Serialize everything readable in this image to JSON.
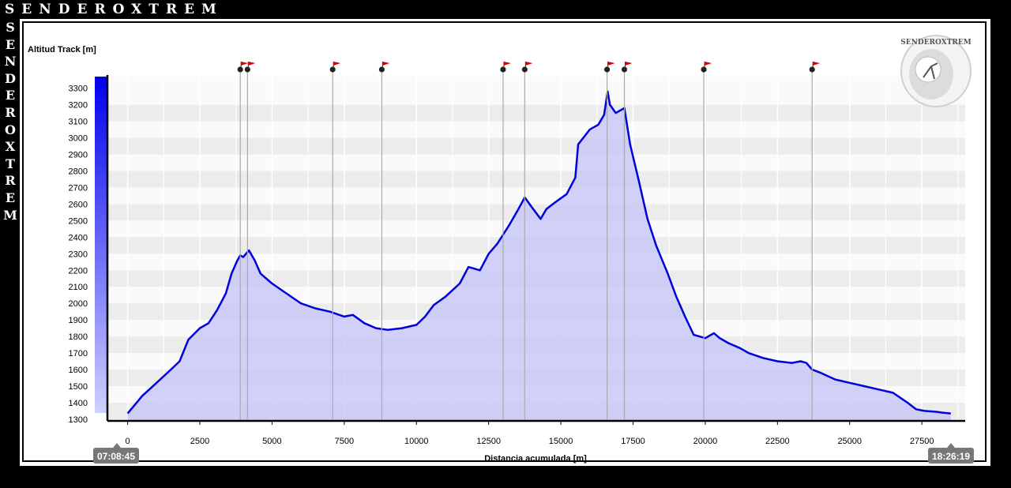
{
  "brand": {
    "name": "SENDEROXTREM",
    "logo_text": "SENDEROXTREM"
  },
  "chart_data": {
    "type": "area",
    "ylabel": "Altitud Track [m]",
    "xlabel": "Distancia acumulada [m]",
    "start_time": "07:08:45",
    "end_time": "18:26:19",
    "xlim": [
      -700,
      29000
    ],
    "ylim": [
      1290,
      3370
    ],
    "x_ticks": [
      0,
      2500,
      5000,
      7500,
      10000,
      12500,
      15000,
      17500,
      20000,
      22500,
      25000,
      27500
    ],
    "y_ticks": [
      1300,
      1400,
      1500,
      1600,
      1700,
      1800,
      1900,
      2000,
      2100,
      2200,
      2300,
      2400,
      2500,
      2600,
      2700,
      2800,
      2900,
      3000,
      3100,
      3200,
      3300
    ],
    "grid": true,
    "waypoints_x": [
      3900,
      4150,
      7100,
      8800,
      13000,
      13750,
      16600,
      17200,
      19950,
      23700
    ],
    "colors": {
      "line": "#0000dd",
      "fill": "#c8c8f8",
      "flag": "#dd0000",
      "band_a": "#ececec",
      "band_b": "#fafafa"
    },
    "series": [
      {
        "x": [
          0,
          500,
          1000,
          1500,
          1800,
          2100,
          2500,
          2800,
          3100,
          3400,
          3600,
          3800,
          3900,
          4000,
          4200,
          4400,
          4600,
          5000,
          5500,
          6000,
          6500,
          7000,
          7500,
          7800,
          8200,
          8600,
          9000,
          9500,
          10000,
          10300,
          10600,
          11000,
          11500,
          11800,
          12200,
          12500,
          12800,
          13200,
          13500,
          13750,
          14000,
          14300,
          14500,
          14800,
          15200,
          15500,
          15600,
          16000,
          16300,
          16500,
          16620,
          16700,
          16900,
          17100,
          17200,
          17400,
          17700,
          18000,
          18300,
          18700,
          19000,
          19300,
          19600,
          19800,
          20000,
          20300,
          20500,
          20800,
          21200,
          21500,
          22000,
          22500,
          23000,
          23300,
          23500,
          23700,
          24000,
          24500,
          25000,
          25500,
          26000,
          26500,
          27000,
          27300,
          27600,
          28000,
          28200,
          28500
        ],
        "y": [
          1335,
          1440,
          1520,
          1600,
          1650,
          1780,
          1850,
          1880,
          1960,
          2060,
          2180,
          2260,
          2290,
          2280,
          2320,
          2260,
          2180,
          2120,
          2060,
          2000,
          1970,
          1950,
          1920,
          1930,
          1880,
          1850,
          1840,
          1850,
          1870,
          1920,
          1990,
          2040,
          2120,
          2220,
          2200,
          2300,
          2360,
          2470,
          2560,
          2640,
          2580,
          2510,
          2570,
          2610,
          2660,
          2760,
          2960,
          3050,
          3080,
          3140,
          3280,
          3200,
          3150,
          3170,
          3180,
          2960,
          2740,
          2510,
          2350,
          2180,
          2040,
          1920,
          1810,
          1800,
          1790,
          1820,
          1790,
          1760,
          1730,
          1700,
          1670,
          1650,
          1640,
          1650,
          1640,
          1600,
          1580,
          1540,
          1520,
          1500,
          1480,
          1460,
          1400,
          1360,
          1350,
          1345,
          1340,
          1335
        ]
      }
    ]
  }
}
